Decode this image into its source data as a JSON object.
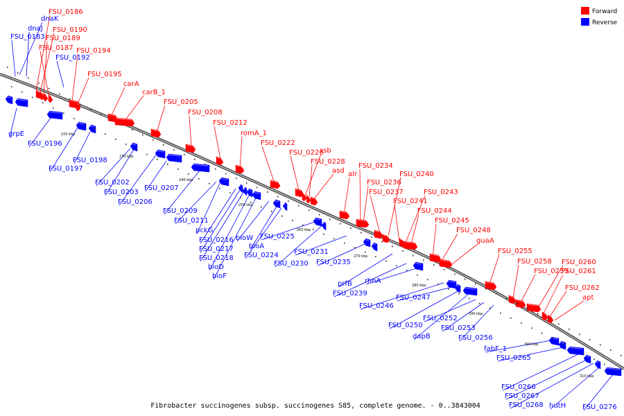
{
  "caption": "Fibrobacter succinogenes subsp. succinogenes S85, complete genome. - 0..3843004",
  "legend": [
    {
      "label": "Forward",
      "color": "#ff0000"
    },
    {
      "label": "Reverse",
      "color": "#0000ff"
    }
  ],
  "colors": {
    "forward": "#ff0000",
    "reverse": "#0000ff",
    "backbone": "#888888"
  },
  "ticks": [
    "220 kbp",
    "230 kbp",
    "240 kbp",
    "250 kbp",
    "260 kbp",
    "270 kbp",
    "280 kbp",
    "290 kbp",
    "300 kbp",
    "310 kbp"
  ],
  "forward_genes": [
    "FSU_0186",
    "FSU_0190",
    "FSU_0189",
    "FSU_0187",
    "FSU_0194",
    "FSU_0195",
    "carA",
    "carB_1",
    "FSU_0205",
    "FSU_0208",
    "FSU_0212",
    "romA_1",
    "FSU_0222",
    "FSU_0226",
    "ssb",
    "FSU_0228",
    "asd",
    "alr",
    "FSU_0234",
    "FSU_0236",
    "FSU_0237",
    "FSU_0240",
    "FSU_0241",
    "FSU_0243",
    "FSU_0244",
    "FSU_0245",
    "FSU_0248",
    "guaA",
    "FSU_0255",
    "FSU_0258",
    "FSU_0259",
    "FSU_0260",
    "FSU_0261",
    "FSU_0262",
    "apt"
  ],
  "reverse_genes": [
    "dnaK",
    "dnaJ",
    "FSU_0183",
    "FSU_0192",
    "grpE",
    "FSU_0196",
    "FSU_0197",
    "FSU_0198",
    "FSU_0202",
    "FSU_0203",
    "FSU_0206",
    "FSU_0207",
    "FSU_0209",
    "FSU_0211",
    "pckG",
    "FSU_0216",
    "FSU_0217",
    "FSU_0218",
    "bioD",
    "bioF",
    "bioW",
    "bioA",
    "FSU_0224",
    "FSU_0225",
    "FSU_0230",
    "FSU_0231",
    "FSU_0235",
    "prfB",
    "FSU_0239",
    "rhnA",
    "FSU_0246",
    "FSU_0247",
    "FSU_0250",
    "dapB",
    "FSU_0252",
    "FSU_0253",
    "FSU_0256",
    "fabF_1",
    "FSU_0265",
    "FSU_0266",
    "FSU_0267",
    "FSU_0268",
    "hutH",
    "FSU_0276"
  ]
}
